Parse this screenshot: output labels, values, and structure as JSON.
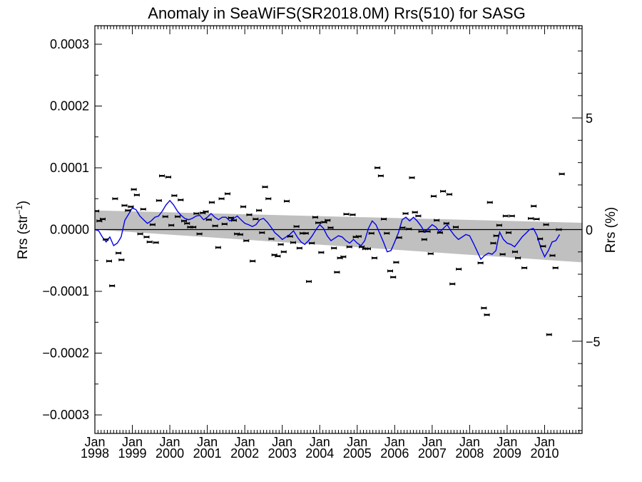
{
  "chart_data": {
    "type": "scatter",
    "title": "Anomaly in SeaWiFS(SR2018.0M) Rrs(510) for SASG",
    "ylabel_left": {
      "base": "Rrs (str",
      "sup": "−1",
      "close": ")"
    },
    "ylabel_right": "Rrs (%)",
    "x_range": [
      1998.0,
      2011.0
    ],
    "ylim_left": [
      -0.00033,
      0.00033
    ],
    "ylim_right": [
      -9.13,
      9.13
    ],
    "yticks_left": [
      {
        "value": 0.0003,
        "label": "0.0003"
      },
      {
        "value": 0.0002,
        "label": "0.0002"
      },
      {
        "value": 0.0001,
        "label": "0.0001"
      },
      {
        "value": 0.0,
        "label": "0.0000"
      },
      {
        "value": -0.0001,
        "label": "−0.0001"
      },
      {
        "value": -0.0002,
        "label": "−0.0002"
      },
      {
        "value": -0.0003,
        "label": "−0.0003"
      }
    ],
    "yticks_right": [
      {
        "value": 5,
        "label": "5"
      },
      {
        "value": 0,
        "label": "0"
      },
      {
        "value": -5,
        "label": "−5"
      }
    ],
    "xticks": [
      {
        "value": 1998,
        "month": "Jan",
        "year": "1998"
      },
      {
        "value": 1999,
        "month": "Jan",
        "year": "1999"
      },
      {
        "value": 2000,
        "month": "Jan",
        "year": "2000"
      },
      {
        "value": 2001,
        "month": "Jan",
        "year": "2001"
      },
      {
        "value": 2002,
        "month": "Jan",
        "year": "2002"
      },
      {
        "value": 2003,
        "month": "Jan",
        "year": "2003"
      },
      {
        "value": 2004,
        "month": "Jan",
        "year": "2004"
      },
      {
        "value": 2005,
        "month": "Jan",
        "year": "2005"
      },
      {
        "value": 2006,
        "month": "Jan",
        "year": "2006"
      },
      {
        "value": 2007,
        "month": "Jan",
        "year": "2007"
      },
      {
        "value": 2008,
        "month": "Jan",
        "year": "2008"
      },
      {
        "value": 2009,
        "month": "Jan",
        "year": "2009"
      },
      {
        "value": 2010,
        "month": "Jan",
        "year": "2010"
      }
    ],
    "trend_band": {
      "upper": [
        [
          1998.0,
          3.1e-05
        ],
        [
          2011.0,
          1.1e-05
        ]
      ],
      "lower": [
        [
          1998.0,
          0.0
        ],
        [
          2011.0,
          -5.3e-05
        ]
      ]
    },
    "zero_line": 0.0,
    "colors": {
      "smoothed": "#0000ee",
      "band": "#c0c0c0",
      "points": "#000000"
    },
    "monthly_points": [
      [
        1998.04,
        3e-05
      ],
      [
        1998.12,
        1.4e-05
      ],
      [
        1998.21,
        1.7e-05
      ],
      [
        1998.29,
        -1.6e-05
      ],
      [
        1998.38,
        -5.1e-05
      ],
      [
        1998.46,
        -9.1e-05
      ],
      [
        1998.54,
        5e-05
      ],
      [
        1998.63,
        -3.8e-05
      ],
      [
        1998.71,
        -4.9e-05
      ],
      [
        1998.79,
        3.9e-05
      ],
      [
        1998.88,
        3.1e-05
      ],
      [
        1998.96,
        3.7e-05
      ],
      [
        1999.04,
        6.5e-05
      ],
      [
        1999.12,
        5.6e-05
      ],
      [
        1999.21,
        -7e-06
      ],
      [
        1999.29,
        3.3e-05
      ],
      [
        1999.38,
        -1.2e-05
      ],
      [
        1999.46,
        -2e-05
      ],
      [
        1999.54,
        8e-06
      ],
      [
        1999.63,
        -2.1e-05
      ],
      [
        1999.71,
        4.7e-05
      ],
      [
        1999.79,
        8.7e-05
      ],
      [
        1999.88,
        2.1e-05
      ],
      [
        1999.96,
        8.5e-05
      ],
      [
        2000.04,
        7e-06
      ],
      [
        2000.12,
        5.5e-05
      ],
      [
        2000.21,
        2.1e-05
      ],
      [
        2000.29,
        4.8e-05
      ],
      [
        2000.38,
        1.4e-05
      ],
      [
        2000.46,
        1e-05
      ],
      [
        2000.54,
        4e-06
      ],
      [
        2000.63,
        4e-06
      ],
      [
        2000.71,
        2.6e-05
      ],
      [
        2000.79,
        -7e-06
      ],
      [
        2000.88,
        2.7e-05
      ],
      [
        2000.96,
        2.9e-05
      ],
      [
        2001.04,
        1.6e-05
      ],
      [
        2001.12,
        4.4e-05
      ],
      [
        2001.21,
        6e-06
      ],
      [
        2001.29,
        -2.9e-05
      ],
      [
        2001.38,
        5e-05
      ],
      [
        2001.46,
        9e-06
      ],
      [
        2001.54,
        5.8e-05
      ],
      [
        2001.63,
        1.9e-05
      ],
      [
        2001.71,
        1.5e-05
      ],
      [
        2001.79,
        -7e-06
      ],
      [
        2001.88,
        -8e-06
      ],
      [
        2001.96,
        3.7e-05
      ],
      [
        2002.04,
        -1.8e-05
      ],
      [
        2002.12,
        2.4e-05
      ],
      [
        2002.21,
        -5.1e-05
      ],
      [
        2002.29,
        1.7e-05
      ],
      [
        2002.38,
        3.1e-05
      ],
      [
        2002.46,
        -5e-06
      ],
      [
        2002.54,
        6.9e-05
      ],
      [
        2002.63,
        5e-05
      ],
      [
        2002.71,
        -1.5e-05
      ],
      [
        2002.79,
        -4.1e-05
      ],
      [
        2002.88,
        -4.3e-05
      ],
      [
        2002.96,
        -2.4e-05
      ],
      [
        2003.04,
        -3.6e-05
      ],
      [
        2003.12,
        4.6e-05
      ],
      [
        2003.21,
        -1.1e-05
      ],
      [
        2003.29,
        -2.1e-05
      ],
      [
        2003.38,
        5e-06
      ],
      [
        2003.46,
        -3e-05
      ],
      [
        2003.54,
        -6e-06
      ],
      [
        2003.63,
        -6e-06
      ],
      [
        2003.71,
        -8.4e-05
      ],
      [
        2003.79,
        -2.2e-05
      ],
      [
        2003.88,
        2e-05
      ],
      [
        2003.96,
        1.1e-05
      ],
      [
        2004.04,
        -3.7e-05
      ],
      [
        2004.12,
        1.2e-05
      ],
      [
        2004.21,
        1.5e-05
      ],
      [
        2004.29,
        3e-06
      ],
      [
        2004.38,
        -3e-05
      ],
      [
        2004.46,
        -6.9e-05
      ],
      [
        2004.54,
        -4.6e-05
      ],
      [
        2004.63,
        -4.4e-05
      ],
      [
        2004.71,
        2.5e-05
      ],
      [
        2004.79,
        -2.8e-05
      ],
      [
        2004.88,
        2.4e-05
      ],
      [
        2004.96,
        -1.2e-05
      ],
      [
        2005.04,
        -1.1e-05
      ],
      [
        2005.12,
        -2.8e-05
      ],
      [
        2005.21,
        -3.1e-05
      ],
      [
        2005.29,
        -3.1e-05
      ],
      [
        2005.38,
        -6e-06
      ],
      [
        2005.46,
        -4.6e-05
      ],
      [
        2005.54,
        0.0001
      ],
      [
        2005.63,
        8.7e-05
      ],
      [
        2005.71,
        1.7e-05
      ],
      [
        2005.79,
        -6e-06
      ],
      [
        2005.88,
        -6.7e-05
      ],
      [
        2005.96,
        -7.7e-05
      ],
      [
        2006.04,
        -5.3e-05
      ],
      [
        2006.12,
        -1.3e-05
      ],
      [
        2006.21,
        3e-06
      ],
      [
        2006.29,
        2.6e-05
      ],
      [
        2006.38,
        1e-06
      ],
      [
        2006.46,
        8.4e-05
      ],
      [
        2006.54,
        2.8e-05
      ],
      [
        2006.63,
        2.2e-05
      ],
      [
        2006.71,
        -3e-06
      ],
      [
        2006.79,
        -1.6e-05
      ],
      [
        2006.88,
        -3e-06
      ],
      [
        2006.96,
        -3.9e-05
      ],
      [
        2007.04,
        5.4e-05
      ],
      [
        2007.12,
        1.5e-05
      ],
      [
        2007.21,
        -5e-06
      ],
      [
        2007.29,
        6.2e-05
      ],
      [
        2007.38,
        1e-05
      ],
      [
        2007.46,
        5.7e-05
      ],
      [
        2007.54,
        -8.8e-05
      ],
      [
        2007.63,
        4e-06
      ],
      [
        2007.71,
        -6.4e-05
      ],
      [
        2008.29,
        -5.4e-05
      ],
      [
        2008.38,
        -0.000127
      ],
      [
        2008.46,
        -0.000138
      ],
      [
        2008.54,
        4.4e-05
      ],
      [
        2008.63,
        -2.2e-05
      ],
      [
        2008.71,
        -1e-05
      ],
      [
        2008.79,
        7e-06
      ],
      [
        2008.88,
        -4e-05
      ],
      [
        2008.96,
        2.2e-05
      ],
      [
        2009.04,
        -5e-06
      ],
      [
        2009.13,
        2.2e-05
      ],
      [
        2009.21,
        -3.6e-05
      ],
      [
        2009.29,
        -4.6e-05
      ],
      [
        2009.46,
        -6.2e-05
      ],
      [
        2009.63,
        1.8e-05
      ],
      [
        2009.71,
        3.8e-05
      ],
      [
        2009.79,
        1.7e-05
      ],
      [
        2009.88,
        -1.5e-05
      ],
      [
        2009.96,
        -2.7e-05
      ],
      [
        2010.04,
        8e-06
      ],
      [
        2010.12,
        -0.00017
      ],
      [
        2010.21,
        -4.2e-05
      ],
      [
        2010.29,
        -6.2e-05
      ],
      [
        2010.38,
        0.0
      ],
      [
        2010.46,
        9e-05
      ]
    ],
    "smoothed_line": [
      [
        1998.0,
        0.0
      ],
      [
        1998.1,
        -2e-06
      ],
      [
        1998.2,
        -1.2e-05
      ],
      [
        1998.3,
        -2e-05
      ],
      [
        1998.4,
        -1.2e-05
      ],
      [
        1998.5,
        -2.6e-05
      ],
      [
        1998.6,
        -2.2e-05
      ],
      [
        1998.7,
        -1.2e-05
      ],
      [
        1998.8,
        1.5e-05
      ],
      [
        1998.9,
        2.5e-05
      ],
      [
        1999.0,
        3.5e-05
      ],
      [
        1999.1,
        3.2e-05
      ],
      [
        1999.2,
        2.2e-05
      ],
      [
        1999.3,
        1.6e-05
      ],
      [
        1999.4,
        1e-05
      ],
      [
        1999.5,
        1.4e-05
      ],
      [
        1999.6,
        2e-05
      ],
      [
        1999.7,
        2.2e-05
      ],
      [
        1999.8,
        3e-05
      ],
      [
        1999.9,
        4e-05
      ],
      [
        2000.0,
        4.7e-05
      ],
      [
        2000.1,
        4e-05
      ],
      [
        2000.2,
        3e-05
      ],
      [
        2000.3,
        2.3e-05
      ],
      [
        2000.4,
        1.8e-05
      ],
      [
        2000.5,
        1.6e-05
      ],
      [
        2000.6,
        1.8e-05
      ],
      [
        2000.7,
        2.2e-05
      ],
      [
        2000.8,
        2.3e-05
      ],
      [
        2000.9,
        1.6e-05
      ],
      [
        2001.0,
        2e-05
      ],
      [
        2001.1,
        2.6e-05
      ],
      [
        2001.2,
        2e-05
      ],
      [
        2001.3,
        1.6e-05
      ],
      [
        2001.4,
        2e-05
      ],
      [
        2001.5,
        2e-05
      ],
      [
        2001.6,
        1.4e-05
      ],
      [
        2001.7,
        1.8e-05
      ],
      [
        2001.8,
        2.2e-05
      ],
      [
        2001.9,
        1.6e-05
      ],
      [
        2002.0,
        1e-05
      ],
      [
        2002.1,
        8e-06
      ],
      [
        2002.2,
        5e-06
      ],
      [
        2002.3,
        8e-06
      ],
      [
        2002.4,
        1.6e-05
      ],
      [
        2002.5,
        1.8e-05
      ],
      [
        2002.6,
        1.2e-05
      ],
      [
        2002.7,
        4e-06
      ],
      [
        2002.8,
        -5e-06
      ],
      [
        2002.9,
        -1e-05
      ],
      [
        2003.0,
        -1.6e-05
      ],
      [
        2003.1,
        -1.2e-05
      ],
      [
        2003.2,
        -8e-06
      ],
      [
        2003.3,
        -2e-06
      ],
      [
        2003.4,
        -1.2e-05
      ],
      [
        2003.5,
        -2e-05
      ],
      [
        2003.6,
        -2.4e-05
      ],
      [
        2003.7,
        -1.8e-05
      ],
      [
        2003.8,
        -1e-05
      ],
      [
        2003.9,
        0.0
      ],
      [
        2004.0,
        8e-06
      ],
      [
        2004.1,
        2e-06
      ],
      [
        2004.2,
        -1e-05
      ],
      [
        2004.3,
        -1.8e-05
      ],
      [
        2004.4,
        -1.4e-05
      ],
      [
        2004.5,
        -1e-05
      ],
      [
        2004.6,
        -1.2e-05
      ],
      [
        2004.7,
        -1.8e-05
      ],
      [
        2004.8,
        -2.2e-05
      ],
      [
        2004.9,
        -1.6e-05
      ],
      [
        2005.0,
        -2.2e-05
      ],
      [
        2005.1,
        -2.6e-05
      ],
      [
        2005.2,
        -1.8e-05
      ],
      [
        2005.3,
        2e-06
      ],
      [
        2005.4,
        1.4e-05
      ],
      [
        2005.5,
        8e-06
      ],
      [
        2005.6,
        -6e-06
      ],
      [
        2005.7,
        -2e-05
      ],
      [
        2005.8,
        -3.6e-05
      ],
      [
        2005.9,
        -3.4e-05
      ],
      [
        2006.0,
        -2e-05
      ],
      [
        2006.1,
        -5e-06
      ],
      [
        2006.2,
        1.6e-05
      ],
      [
        2006.3,
        2e-05
      ],
      [
        2006.4,
        1.4e-05
      ],
      [
        2006.5,
        2e-05
      ],
      [
        2006.6,
        1.4e-05
      ],
      [
        2006.7,
        6e-06
      ],
      [
        2006.8,
        -4e-06
      ],
      [
        2006.9,
        2e-06
      ],
      [
        2007.0,
        8e-06
      ],
      [
        2007.1,
        4e-06
      ],
      [
        2007.2,
        -4e-06
      ],
      [
        2007.3,
        2e-06
      ],
      [
        2007.4,
        8e-06
      ],
      [
        2007.5,
        -2e-06
      ],
      [
        2007.6,
        -1e-05
      ],
      [
        2007.7,
        -1.6e-05
      ],
      [
        2007.8,
        -1.2e-05
      ],
      [
        2007.9,
        -8e-06
      ],
      [
        2008.0,
        -1e-05
      ],
      [
        2008.1,
        -2.2e-05
      ],
      [
        2008.2,
        -3.5e-05
      ],
      [
        2008.3,
        -4.8e-05
      ],
      [
        2008.4,
        -4.2e-05
      ],
      [
        2008.5,
        -3.8e-05
      ],
      [
        2008.6,
        -4e-05
      ],
      [
        2008.7,
        -3.4e-05
      ],
      [
        2008.8,
        -4e-06
      ],
      [
        2008.9,
        -1.6e-05
      ],
      [
        2009.0,
        -2.2e-05
      ],
      [
        2009.1,
        -2.4e-05
      ],
      [
        2009.2,
        -2.8e-05
      ],
      [
        2009.3,
        -2e-05
      ],
      [
        2009.4,
        -1.2e-05
      ],
      [
        2009.5,
        -6e-06
      ],
      [
        2009.6,
        0.0
      ],
      [
        2009.7,
        2e-06
      ],
      [
        2009.8,
        -1e-05
      ],
      [
        2009.9,
        -3e-05
      ],
      [
        2010.0,
        -4.4e-05
      ],
      [
        2010.1,
        -3.4e-05
      ],
      [
        2010.2,
        -2e-05
      ],
      [
        2010.3,
        -1.8e-05
      ],
      [
        2010.4,
        -8e-06
      ]
    ]
  }
}
